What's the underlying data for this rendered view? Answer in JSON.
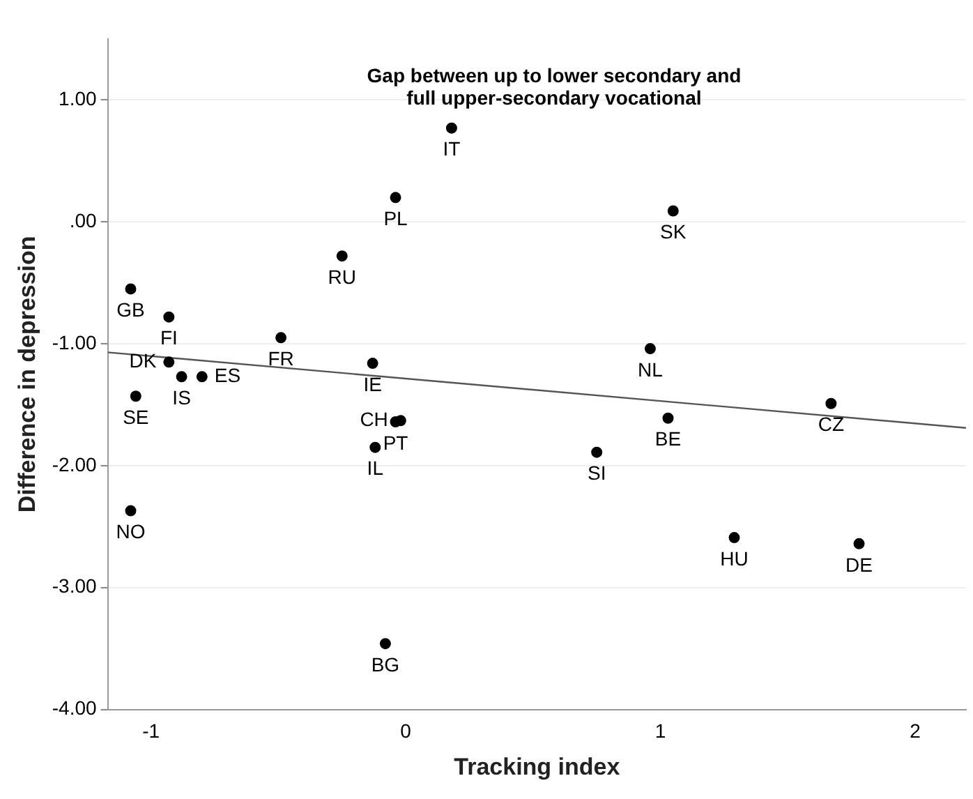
{
  "chart_data": {
    "type": "scatter",
    "title": "Gap between up to lower secondary and\nfull upper-secondary vocational",
    "xlabel": "Tracking index",
    "ylabel": "Difference in depression",
    "series": [
      {
        "color": "#000000",
        "marker": "circle",
        "x": [
          0.18,
          -0.04,
          1.05,
          -0.25,
          -1.08,
          -0.93,
          -0.49,
          0.96,
          -0.13,
          -0.93,
          -0.88,
          -0.8,
          -1.06,
          -0.04,
          -0.02,
          -0.12,
          1.03,
          1.67,
          0.75,
          -1.08,
          1.29,
          1.78,
          -0.08
        ],
        "values": [
          0.77,
          0.2,
          0.09,
          -0.28,
          -0.55,
          -0.78,
          -0.95,
          -1.04,
          -1.16,
          -1.15,
          -1.27,
          -1.27,
          -1.43,
          -1.64,
          -1.63,
          -1.85,
          -1.61,
          -1.49,
          -1.89,
          -2.37,
          -2.59,
          -2.64,
          -3.46
        ]
      },
      {
        "type": "line",
        "color": "#555555",
        "marker": "none",
        "x": [
          -1.17,
          2.2
        ],
        "values": [
          -1.07,
          -1.69
        ]
      }
    ],
    "annotations": [
      {
        "text": "IT",
        "x": 0.18,
        "y": 0.77
      },
      {
        "text": "PL",
        "x": -0.04,
        "y": 0.2
      },
      {
        "text": "SK",
        "x": 1.05,
        "y": 0.09
      },
      {
        "text": "RU",
        "x": -0.25,
        "y": -0.28
      },
      {
        "text": "GB",
        "x": -1.08,
        "y": -0.55
      },
      {
        "text": "FI",
        "x": -0.93,
        "y": -0.78
      },
      {
        "text": "FR",
        "x": -0.49,
        "y": -0.95
      },
      {
        "text": "NL",
        "x": 0.96,
        "y": -1.04
      },
      {
        "text": "IE",
        "x": -0.13,
        "y": -1.16
      },
      {
        "text": "DK",
        "x": -0.93,
        "y": -1.15
      },
      {
        "text": "IS",
        "x": -0.88,
        "y": -1.27
      },
      {
        "text": "ES",
        "x": -0.8,
        "y": -1.27
      },
      {
        "text": "SE",
        "x": -1.06,
        "y": -1.43
      },
      {
        "text": "PT",
        "x": -0.04,
        "y": -1.64
      },
      {
        "text": "CH",
        "x": -0.02,
        "y": -1.63
      },
      {
        "text": "IL",
        "x": -0.12,
        "y": -1.85
      },
      {
        "text": "BE",
        "x": 1.03,
        "y": -1.61
      },
      {
        "text": "CZ",
        "x": 1.67,
        "y": -1.49
      },
      {
        "text": "SI",
        "x": 0.75,
        "y": -1.89
      },
      {
        "text": "NO",
        "x": -1.08,
        "y": -2.37
      },
      {
        "text": "HU",
        "x": 1.29,
        "y": -2.59
      },
      {
        "text": "DE",
        "x": 1.78,
        "y": -2.64
      },
      {
        "text": "BG",
        "x": -0.08,
        "y": -3.46
      }
    ],
    "xlim": [
      -1.17,
      2.2
    ],
    "xticks": [
      -1,
      0,
      1,
      2
    ],
    "ylim": [
      -4,
      1.5
    ],
    "yticks": [
      {
        "value": -4,
        "label": "-4.00"
      },
      {
        "value": -3,
        "label": "-3.00"
      },
      {
        "value": -2,
        "label": "-2.00"
      },
      {
        "value": -1,
        "label": "-1.00"
      },
      {
        "value": 0,
        "label": ".00"
      },
      {
        "value": 1,
        "label": "1.00"
      }
    ],
    "grid": "y",
    "legend": false
  }
}
